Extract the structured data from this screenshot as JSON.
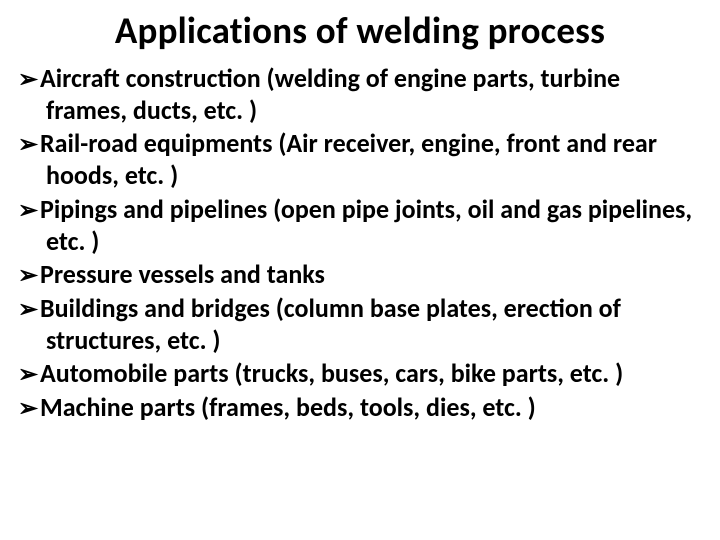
{
  "title": "Applications of welding process",
  "title_fontsize": 37,
  "title_fontweight": 700,
  "title_color": "#000000",
  "background_color": "#ffffff",
  "bullet_marker": "➢",
  "bullet_fontsize": 26,
  "bullet_fontweight": 700,
  "bullet_color": "#000000",
  "bullets": [
    "Aircraft construction (welding of engine parts, turbine frames, ducts, etc. )",
    "Rail-road equipments (Air receiver, engine, front and rear hoods, etc. )",
    "Pipings and pipelines (open pipe joints, oil and gas pipelines, etc. )",
    "Pressure vessels and tanks",
    "Buildings and bridges (column base plates, erection of structures, etc. )",
    "Automobile parts (trucks, buses, cars, bike parts, etc. )",
    "Machine parts (frames, beds, tools, dies, etc. )"
  ]
}
